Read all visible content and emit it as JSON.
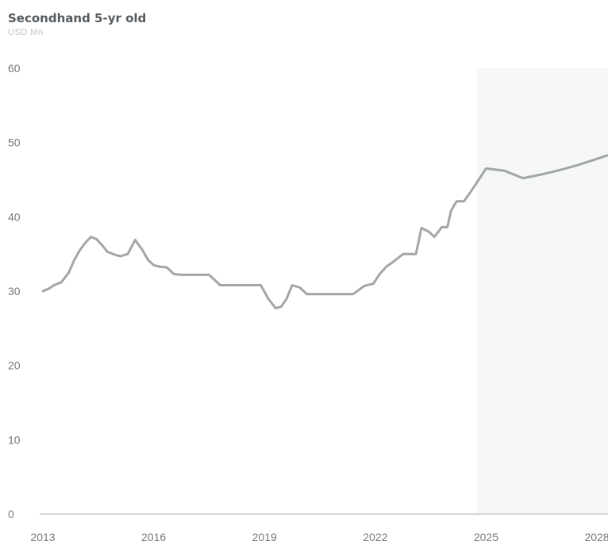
{
  "chart_data": {
    "type": "line",
    "title": "Secondhand 5-yr old",
    "subtitle": "USD Mn",
    "xlabel": "",
    "ylabel": "",
    "x_ticks": [
      "2013",
      "2016",
      "2019",
      "2022",
      "2025",
      "2028"
    ],
    "y_ticks": [
      "0",
      "10",
      "20",
      "30",
      "40",
      "50",
      "60"
    ],
    "xlim": [
      2013,
      2028.3
    ],
    "ylim": [
      0,
      60
    ],
    "grid": false,
    "forecast_shading_start": 2024.75,
    "series": [
      {
        "name": "",
        "color": "#a3a6a8",
        "x": [
          2013.0,
          2013.15,
          2013.3,
          2013.5,
          2013.7,
          2013.85,
          2014.0,
          2014.15,
          2014.3,
          2014.45,
          2014.6,
          2014.75,
          2014.95,
          2015.1,
          2015.3,
          2015.5,
          2015.7,
          2015.85,
          2016.0,
          2016.15,
          2016.35,
          2016.55,
          2016.75,
          2017.0,
          2017.25,
          2017.5,
          2017.8,
          2018.0,
          2018.3,
          2018.6,
          2018.9,
          2019.1,
          2019.3,
          2019.45,
          2019.6,
          2019.75,
          2019.95,
          2020.15,
          2020.3,
          2020.5,
          2020.8,
          2021.1,
          2021.4,
          2021.7,
          2021.95,
          2022.1,
          2022.3,
          2022.5,
          2022.75,
          2022.95,
          2023.1,
          2023.25,
          2023.45,
          2023.6,
          2023.8,
          2023.95,
          2024.05,
          2024.2,
          2024.4,
          2024.6,
          2024.8,
          2025.0,
          2025.5,
          2026.0,
          2026.5,
          2027.0,
          2027.5,
          2028.0,
          2028.3
        ],
        "values": [
          30.0,
          30.3,
          30.8,
          31.2,
          32.5,
          34.2,
          35.5,
          36.5,
          37.3,
          37.0,
          36.2,
          35.3,
          34.9,
          34.7,
          35.0,
          36.9,
          35.5,
          34.2,
          33.5,
          33.3,
          33.2,
          32.3,
          32.2,
          32.2,
          32.2,
          32.2,
          30.8,
          30.8,
          30.8,
          30.8,
          30.8,
          29.0,
          27.7,
          27.9,
          29.0,
          30.8,
          30.5,
          29.6,
          29.6,
          29.6,
          29.6,
          29.6,
          29.6,
          30.7,
          31.0,
          32.2,
          33.3,
          34.0,
          35.0,
          35.0,
          35.0,
          38.5,
          38.0,
          37.3,
          38.6,
          38.6,
          40.8,
          42.1,
          42.1,
          43.5,
          45.0,
          46.5,
          46.2,
          45.2,
          45.7,
          46.3,
          47.0,
          47.8,
          48.3
        ]
      }
    ]
  }
}
